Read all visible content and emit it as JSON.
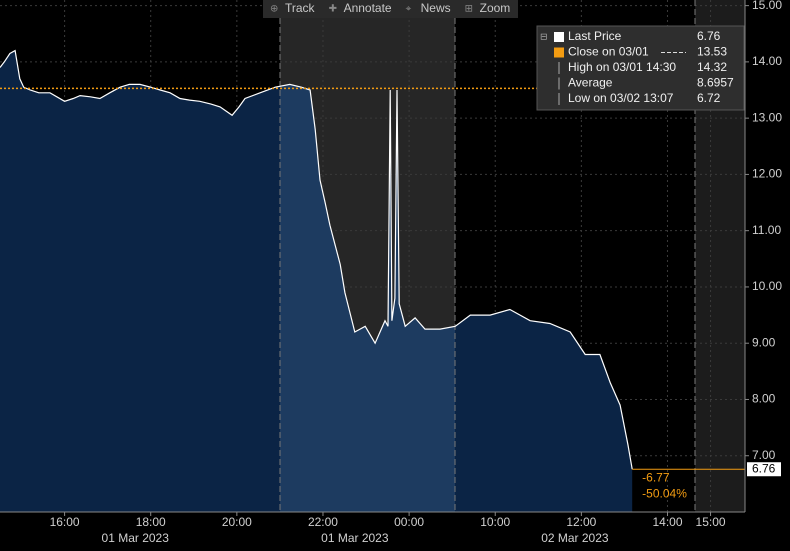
{
  "chart_data": {
    "type": "line",
    "toolbar": [
      "Track",
      "Annotate",
      "News",
      "Zoom"
    ],
    "series": [
      {
        "name": "Last Price",
        "color": "#ffffff",
        "x": [
          14.5,
          14.6,
          14.73,
          14.85,
          14.96,
          15.05,
          15.2,
          15.4,
          15.66,
          16.0,
          16.2,
          16.36,
          16.6,
          16.82,
          17.05,
          17.29,
          17.5,
          17.75,
          18.0,
          18.22,
          18.45,
          18.68,
          18.9,
          19.14,
          19.4,
          19.61,
          19.89,
          20.05,
          20.19,
          20.54,
          20.89,
          21.23,
          21.5,
          21.7,
          21.82,
          21.93,
          22.05,
          22.16,
          22.4,
          22.51,
          22.74,
          22.98,
          23.21,
          23.44,
          23.51,
          23.56,
          23.6,
          23.67,
          23.72,
          23.77,
          23.91,
          24.14,
          24.37,
          24.72,
          25.07,
          25.42,
          25.88,
          26.34,
          26.81,
          27.27,
          27.74,
          28.09,
          28.43,
          28.67,
          28.9,
          29.08,
          29.18
        ],
        "values": [
          13.9,
          14.0,
          14.15,
          14.2,
          13.7,
          13.55,
          13.5,
          13.45,
          13.45,
          13.3,
          13.35,
          13.4,
          13.38,
          13.35,
          13.45,
          13.55,
          13.6,
          13.6,
          13.55,
          13.5,
          13.45,
          13.35,
          13.32,
          13.3,
          13.25,
          13.2,
          13.05,
          13.2,
          13.35,
          13.45,
          13.55,
          13.6,
          13.55,
          13.5,
          12.8,
          11.9,
          11.5,
          11.1,
          10.4,
          9.9,
          9.2,
          9.3,
          9.0,
          9.4,
          9.3,
          13.5,
          9.4,
          9.8,
          13.5,
          9.7,
          9.3,
          9.45,
          9.25,
          9.25,
          9.3,
          9.5,
          9.5,
          9.6,
          9.4,
          9.35,
          9.2,
          8.8,
          8.8,
          8.3,
          7.9,
          7.2,
          6.76
        ]
      }
    ],
    "legend": [
      {
        "label": "Last Price",
        "value": 6.76
      },
      {
        "label": "Close on 03/01",
        "value": 13.53
      },
      {
        "label": "High on 03/01 14:30",
        "value": 14.32
      },
      {
        "label": "Average",
        "value": 8.6957
      },
      {
        "label": "Low on 03/02 13:07",
        "value": 6.72
      }
    ],
    "annotations": [
      "-6.77",
      "-50.04%"
    ],
    "xlim": [
      14.5,
      31.8
    ],
    "xticks": [
      {
        "value": 16,
        "label": "16:00"
      },
      {
        "value": 18,
        "label": "18:00"
      },
      {
        "value": 20,
        "label": "20:00"
      },
      {
        "value": 22,
        "label": "22:00"
      },
      {
        "value": 24,
        "label": "00:00"
      },
      {
        "value": 26,
        "label": "10:00"
      },
      {
        "value": 28,
        "label": "12:00"
      },
      {
        "value": 30,
        "label": "14:00"
      },
      {
        "value": 31,
        "label": "15:00"
      }
    ],
    "xdates": [
      {
        "value": 17.64,
        "label": "01 Mar 2023"
      },
      {
        "value": 22.74,
        "label": "01 Mar 2023"
      },
      {
        "value": 27.85,
        "label": "02 Mar 2023"
      }
    ],
    "ylim": [
      6.0,
      15.1
    ],
    "yticks": [
      {
        "value": 15,
        "label": "15.00"
      },
      {
        "value": 14,
        "label": "14.00"
      },
      {
        "value": 13,
        "label": "13.00"
      },
      {
        "value": 12,
        "label": "12.00"
      },
      {
        "value": 11,
        "label": "11.00"
      },
      {
        "value": 10,
        "label": "10.00"
      },
      {
        "value": 9,
        "label": "9.00"
      },
      {
        "value": 8,
        "label": "8.00"
      },
      {
        "value": 7,
        "label": "7.00"
      }
    ],
    "grid": true
  }
}
